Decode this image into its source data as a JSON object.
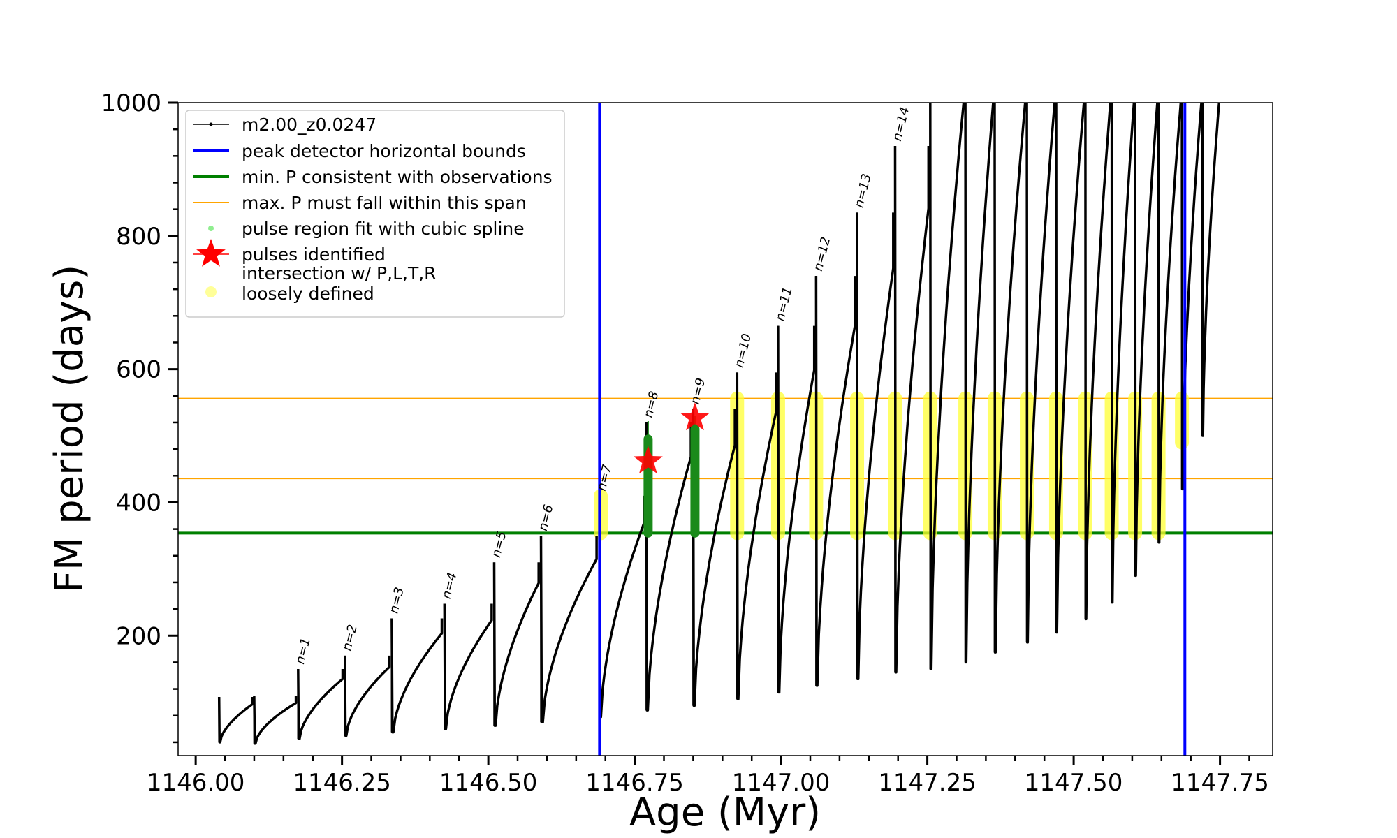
{
  "chart_data": {
    "type": "line",
    "xlabel": "Age (Myr)",
    "ylabel": "FM period (days)",
    "xlim": [
      1145.97,
      1147.84
    ],
    "ylim": [
      20,
      1000
    ],
    "x_ticks": [
      1146.0,
      1146.25,
      1146.5,
      1146.75,
      1147.0,
      1147.25,
      1147.5,
      1147.75
    ],
    "x_tick_labels": [
      "1146.00",
      "1146.25",
      "1146.50",
      "1146.75",
      "1147.00",
      "1147.25",
      "1147.50",
      "1147.75"
    ],
    "y_ticks": [
      200,
      400,
      600,
      800,
      1000
    ],
    "y_tick_labels": [
      "200",
      "400",
      "600",
      "800",
      "1000"
    ],
    "grid": false,
    "legend_position": "upper-left",
    "legend": [
      {
        "label": "m2.00_z0.0247",
        "kind": "line-marker",
        "color": "#000000"
      },
      {
        "label": "peak detector horizontal bounds",
        "kind": "line",
        "color": "#0000ff"
      },
      {
        "label": "min. P consistent with observations",
        "kind": "line",
        "color": "#008000"
      },
      {
        "label": "max. P must fall within this span",
        "kind": "thin-line",
        "color": "#ffa500"
      },
      {
        "label": "pulse region fit with cubic spline",
        "kind": "dot",
        "color": "#90ee90"
      },
      {
        "label": "pulses identified",
        "kind": "star",
        "color": "#ff0000"
      },
      {
        "label": "intersection w/ P,L,T,R\nloosely defined",
        "kind": "big-dot",
        "color": "#ffff99"
      }
    ],
    "reference_lines": {
      "peak_detector_bounds_x": [
        1146.69,
        1147.69
      ],
      "min_period_y": 354,
      "max_period_span_y": [
        436,
        556
      ]
    },
    "colors": {
      "series": "#000000",
      "bounds": "#0000ff",
      "min_period": "#008000",
      "max_span": "#ffa500",
      "spline": "#90ee90",
      "spline_dark": "#1a8a1a",
      "star": "#ff0000",
      "intersection": "#ffff33"
    },
    "pulses": [
      {
        "x0": 1146.04,
        "x1": 1146.1,
        "peak": 108,
        "min": 40
      },
      {
        "x0": 1146.1,
        "x1": 1146.175,
        "peak": 110,
        "min": 38
      },
      {
        "x0": 1146.175,
        "x1": 1146.255,
        "peak": 150,
        "min": 45,
        "label": "n=1"
      },
      {
        "x0": 1146.255,
        "x1": 1146.335,
        "peak": 170,
        "min": 50,
        "label": "n=2"
      },
      {
        "x0": 1146.335,
        "x1": 1146.425,
        "peak": 226,
        "min": 55,
        "label": "n=3"
      },
      {
        "x0": 1146.425,
        "x1": 1146.51,
        "peak": 248,
        "min": 60,
        "label": "n=4"
      },
      {
        "x0": 1146.51,
        "x1": 1146.59,
        "peak": 310,
        "min": 65,
        "label": "n=5"
      },
      {
        "x0": 1146.59,
        "x1": 1146.69,
        "peak": 350,
        "min": 70,
        "label": "n=6"
      },
      {
        "x0": 1146.69,
        "x1": 1146.77,
        "peak": 410,
        "min": 78,
        "label": "n=7"
      },
      {
        "x0": 1146.77,
        "x1": 1146.85,
        "peak": 520,
        "min": 88,
        "label": "n=8"
      },
      {
        "x0": 1146.85,
        "x1": 1146.925,
        "peak": 540,
        "min": 95,
        "label": "n=9"
      },
      {
        "x0": 1146.925,
        "x1": 1146.995,
        "peak": 595,
        "min": 105,
        "label": "n=10"
      },
      {
        "x0": 1146.995,
        "x1": 1147.06,
        "peak": 665,
        "min": 115,
        "label": "n=11"
      },
      {
        "x0": 1147.06,
        "x1": 1147.13,
        "peak": 740,
        "min": 125,
        "label": "n=12"
      },
      {
        "x0": 1147.13,
        "x1": 1147.195,
        "peak": 835,
        "min": 135,
        "label": "n=13"
      },
      {
        "x0": 1147.195,
        "x1": 1147.255,
        "peak": 935,
        "min": 145,
        "label": "n=14"
      },
      {
        "x0": 1147.255,
        "x1": 1147.315,
        "peak": 1000,
        "min": 150
      },
      {
        "x0": 1147.315,
        "x1": 1147.365,
        "peak": 1000,
        "min": 160
      },
      {
        "x0": 1147.365,
        "x1": 1147.42,
        "peak": 1000,
        "min": 175
      },
      {
        "x0": 1147.42,
        "x1": 1147.47,
        "peak": 1000,
        "min": 190
      },
      {
        "x0": 1147.47,
        "x1": 1147.52,
        "peak": 1000,
        "min": 205
      },
      {
        "x0": 1147.52,
        "x1": 1147.565,
        "peak": 1000,
        "min": 225
      },
      {
        "x0": 1147.565,
        "x1": 1147.605,
        "peak": 1000,
        "min": 250
      },
      {
        "x0": 1147.605,
        "x1": 1147.645,
        "peak": 1000,
        "min": 290
      },
      {
        "x0": 1147.645,
        "x1": 1147.685,
        "peak": 1000,
        "min": 340
      },
      {
        "x0": 1147.685,
        "x1": 1147.72,
        "peak": 1000,
        "min": 420
      },
      {
        "x0": 1147.72,
        "x1": 1147.75,
        "peak": 1000,
        "min": 500
      }
    ],
    "stars": [
      {
        "x": 1146.773,
        "y": 462
      },
      {
        "x": 1146.853,
        "y": 527
      }
    ],
    "spline_regions": [
      {
        "x": 1146.773,
        "y_low": 354,
        "y_high": 495,
        "y_top": 522
      },
      {
        "x": 1146.853,
        "y_low": 354,
        "y_high": 510,
        "y_top": 530
      }
    ],
    "intersection_bands": [
      {
        "x": 1146.692,
        "y_low": 354,
        "y_high": 410
      },
      {
        "x": 1146.925,
        "y_low": 354,
        "y_high": 556
      },
      {
        "x": 1146.995,
        "y_low": 354,
        "y_high": 556
      },
      {
        "x": 1147.06,
        "y_low": 354,
        "y_high": 556
      },
      {
        "x": 1147.13,
        "y_low": 354,
        "y_high": 556
      },
      {
        "x": 1147.195,
        "y_low": 354,
        "y_high": 556
      },
      {
        "x": 1147.255,
        "y_low": 354,
        "y_high": 556
      },
      {
        "x": 1147.315,
        "y_low": 354,
        "y_high": 556
      },
      {
        "x": 1147.365,
        "y_low": 354,
        "y_high": 556
      },
      {
        "x": 1147.42,
        "y_low": 354,
        "y_high": 556
      },
      {
        "x": 1147.47,
        "y_low": 354,
        "y_high": 556
      },
      {
        "x": 1147.52,
        "y_low": 354,
        "y_high": 556
      },
      {
        "x": 1147.565,
        "y_low": 354,
        "y_high": 556
      },
      {
        "x": 1147.605,
        "y_low": 354,
        "y_high": 556
      },
      {
        "x": 1147.645,
        "y_low": 354,
        "y_high": 556
      },
      {
        "x": 1147.685,
        "y_low": 490,
        "y_high": 556
      }
    ]
  }
}
